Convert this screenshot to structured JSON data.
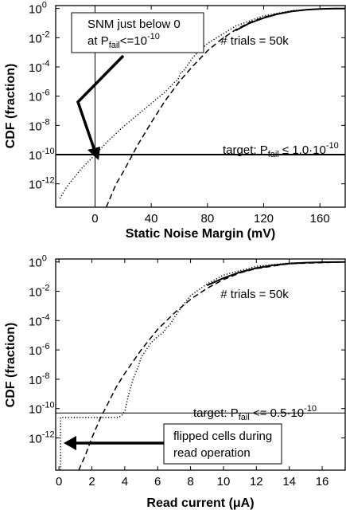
{
  "chart_data": [
    {
      "type": "line",
      "xlabel": "Static Noise Margin (mV)",
      "ylabel": "CDF (fraction)",
      "xlim": [
        -28,
        178
      ],
      "ylim_log10": [
        -13.6,
        0.2
      ],
      "yscale": "log",
      "xticks": [
        "0",
        "40",
        "80",
        "120",
        "160"
      ],
      "yticks": [
        {
          "base": "10",
          "exp": "0"
        },
        {
          "base": "10",
          "exp": "-2"
        },
        {
          "base": "10",
          "exp": "-4"
        },
        {
          "base": "10",
          "exp": "-6"
        },
        {
          "base": "10",
          "exp": "-8"
        },
        {
          "base": "10",
          "exp": "-10"
        },
        {
          "base": "10",
          "exp": "-12"
        }
      ],
      "annotations": {
        "trials": "# trials = 50k",
        "box_line1": "SNM just below 0",
        "box_line2_pre": "at P",
        "box_line2_sub": "fail",
        "box_line2_post": "<=10",
        "box_line2_sup": "-10",
        "target_pre": "target: P",
        "target_sub": "fail",
        "target_post": " ≤ 1.0·10",
        "target_sup": "-10"
      },
      "target_log10": -10,
      "series": [
        {
          "style": "dotted",
          "x": [
            -25,
            -20,
            -10,
            0,
            10,
            20,
            30,
            40,
            50,
            55,
            57,
            59,
            61,
            63,
            65,
            70,
            80,
            100,
            120,
            140,
            160,
            178
          ],
          "log10y": [
            -13.0,
            -12.2,
            -11.0,
            -10.0,
            -9.0,
            -8.1,
            -7.3,
            -6.5,
            -5.7,
            -5.2,
            -5.0,
            -4.9,
            -4.35,
            -4.3,
            -4.0,
            -3.3,
            -2.4,
            -1.2,
            -0.5,
            -0.15,
            -0.03,
            0.0
          ]
        },
        {
          "style": "dashed",
          "x": [
            8,
            15,
            20,
            25,
            30,
            40,
            50,
            60,
            70,
            80,
            90,
            100,
            110,
            120,
            130,
            140,
            150,
            160,
            170,
            178
          ],
          "log10y": [
            -13.6,
            -12.0,
            -11.2,
            -10.3,
            -9.4,
            -7.8,
            -6.3,
            -5.0,
            -3.9,
            -2.9,
            -2.1,
            -1.45,
            -0.95,
            -0.6,
            -0.35,
            -0.18,
            -0.08,
            -0.03,
            -0.01,
            0.0
          ]
        },
        {
          "style": "solid",
          "x": [
            100,
            110,
            120,
            130,
            140,
            150,
            160,
            170,
            178
          ],
          "log10y": [
            -1.5,
            -1.0,
            -0.65,
            -0.38,
            -0.2,
            -0.09,
            -0.03,
            -0.005,
            0.0
          ]
        }
      ]
    },
    {
      "type": "line",
      "xlabel": "Read current (μA)",
      "ylabel": "CDF (fraction)",
      "xlim": [
        -0.2,
        17.4
      ],
      "ylim_log10": [
        -14.2,
        0.2
      ],
      "yscale": "log",
      "xticks": [
        "0",
        "2",
        "4",
        "6",
        "8",
        "10",
        "12",
        "14",
        "16"
      ],
      "yticks": [
        {
          "base": "10",
          "exp": "0"
        },
        {
          "base": "10",
          "exp": "-2"
        },
        {
          "base": "10",
          "exp": "-4"
        },
        {
          "base": "10",
          "exp": "-6"
        },
        {
          "base": "10",
          "exp": "-8"
        },
        {
          "base": "10",
          "exp": "-10"
        },
        {
          "base": "10",
          "exp": "-12"
        }
      ],
      "annotations": {
        "trials": "# trials = 50k",
        "box_line1": "flipped cells during",
        "box_line2": "read operation",
        "target_pre": "target: P",
        "target_sub": "fail",
        "target_post": " <= 0.5·10",
        "target_sup": "-10"
      },
      "target_log10": -10.3,
      "series": [
        {
          "style": "dotted",
          "x": [
            0.1,
            0.1,
            3.6,
            3.8,
            4.0,
            4.2,
            4.5,
            4.8,
            5.0,
            5.3,
            5.6,
            6.0,
            6.4,
            6.5,
            6.6,
            6.8,
            7.0,
            7.5,
            8.0,
            9.0,
            10.0,
            12.0,
            14.0,
            17.4
          ],
          "log10y": [
            -14.2,
            -10.6,
            -10.6,
            -10.5,
            -10.2,
            -9.2,
            -8.0,
            -7.2,
            -6.5,
            -6.0,
            -5.5,
            -5.1,
            -4.75,
            -4.5,
            -4.45,
            -4.2,
            -3.8,
            -3.0,
            -2.3,
            -1.5,
            -0.9,
            -0.3,
            -0.07,
            0.0
          ]
        },
        {
          "style": "dashed",
          "x": [
            1.2,
            1.6,
            2.0,
            2.5,
            3.0,
            3.5,
            4.0,
            4.5,
            5.0,
            6.0,
            7.0,
            8.0,
            9.0,
            10.0,
            11.0,
            12.0,
            14.0,
            17.4
          ],
          "log10y": [
            -14.2,
            -13.2,
            -12.0,
            -10.7,
            -9.6,
            -8.5,
            -7.6,
            -6.8,
            -6.0,
            -4.6,
            -3.5,
            -2.55,
            -1.8,
            -1.2,
            -0.75,
            -0.45,
            -0.12,
            0.0
          ]
        },
        {
          "style": "solid",
          "x": [
            9.0,
            10.0,
            11.0,
            12.0,
            13.0,
            14.0,
            15.0,
            16.0,
            17.4
          ],
          "log10y": [
            -1.6,
            -1.1,
            -0.7,
            -0.42,
            -0.23,
            -0.11,
            -0.05,
            -0.02,
            0.0
          ]
        }
      ]
    }
  ]
}
